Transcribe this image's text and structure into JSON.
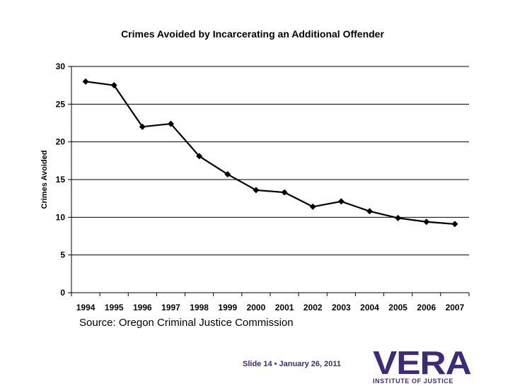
{
  "chart_data": {
    "type": "line",
    "title": "Crimes Avoided by Incarcerating an Additional Offender",
    "xlabel": "",
    "ylabel": "Crimes Avoided",
    "categories": [
      "1994",
      "1995",
      "1996",
      "1997",
      "1998",
      "1999",
      "2000",
      "2001",
      "2002",
      "2003",
      "2004",
      "2005",
      "2006",
      "2007"
    ],
    "series": [
      {
        "name": "Crimes Avoided",
        "values": [
          28.0,
          27.5,
          22.0,
          22.4,
          18.1,
          15.7,
          13.6,
          13.3,
          11.4,
          12.1,
          10.8,
          9.9,
          9.4,
          9.1
        ]
      }
    ],
    "ylim": [
      0,
      30
    ],
    "yticks": [
      0,
      5,
      10,
      15,
      20,
      25,
      30
    ],
    "grid": true,
    "marker": "diamond",
    "line_color": "#000000"
  },
  "source": "Source: Oregon Criminal Justice Commission",
  "footer": "Slide 14 •  January 26, 2011",
  "logo": {
    "name": "VERA",
    "subtitle": "INSTITUTE OF JUSTICE",
    "color": "#3f2a78"
  }
}
